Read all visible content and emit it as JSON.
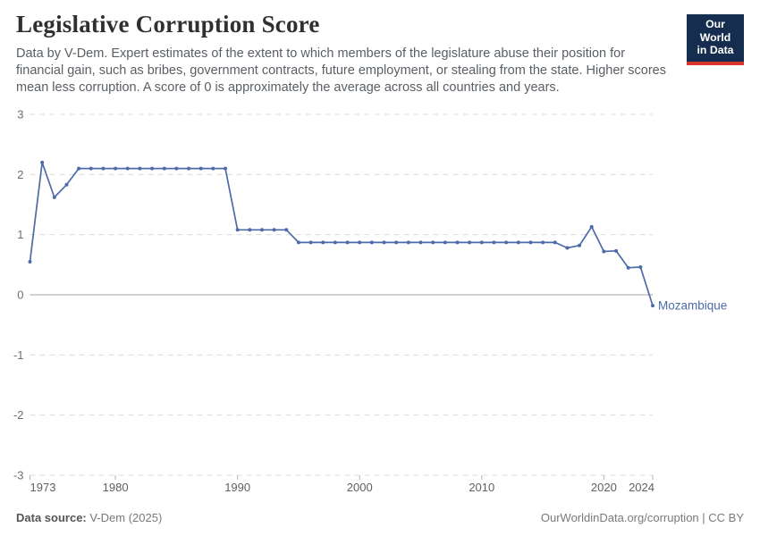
{
  "header": {
    "title": "Legislative Corruption Score",
    "subtitle": "Data by V-Dem. Expert estimates of the extent to which members of the legislature abuse their position for financial gain, such as bribes, government contracts, future employment, or stealing from the state. Higher scores mean less corruption. A score of 0 is approximately the average across all countries and years.",
    "logo": {
      "line1": "Our World",
      "line2": "in Data",
      "bg_color": "#152d4e",
      "bar_color": "#d8352c"
    }
  },
  "chart_data": {
    "type": "line",
    "title": "Legislative Corruption Score",
    "xlabel": "",
    "ylabel": "",
    "xlim": [
      1973,
      2024
    ],
    "ylim": [
      -3,
      3
    ],
    "x_ticks": [
      1973,
      1980,
      1990,
      2000,
      2010,
      2020,
      2024
    ],
    "y_ticks": [
      -3,
      -2,
      -1,
      0,
      1,
      2,
      3
    ],
    "grid": "horizontal dashed gridlines, solid line at zero",
    "legend_position": "end-of-line label",
    "line_color": "#4c6ba8",
    "grid_color": "#dcdcdc",
    "zero_line_color": "#a3a3a3",
    "series": [
      {
        "name": "Mozambique",
        "color": "#4c6ba8",
        "points": [
          [
            1973,
            0.55
          ],
          [
            1974,
            2.2
          ],
          [
            1975,
            1.62
          ],
          [
            1976,
            1.83
          ],
          [
            1977,
            2.1
          ],
          [
            1978,
            2.1
          ],
          [
            1979,
            2.1
          ],
          [
            1980,
            2.1
          ],
          [
            1981,
            2.1
          ],
          [
            1982,
            2.1
          ],
          [
            1983,
            2.1
          ],
          [
            1984,
            2.1
          ],
          [
            1985,
            2.1
          ],
          [
            1986,
            2.1
          ],
          [
            1987,
            2.1
          ],
          [
            1988,
            2.1
          ],
          [
            1989,
            2.1
          ],
          [
            1990,
            1.08
          ],
          [
            1991,
            1.08
          ],
          [
            1992,
            1.08
          ],
          [
            1993,
            1.08
          ],
          [
            1994,
            1.08
          ],
          [
            1995,
            0.87
          ],
          [
            1996,
            0.87
          ],
          [
            1997,
            0.87
          ],
          [
            1998,
            0.87
          ],
          [
            1999,
            0.87
          ],
          [
            2000,
            0.87
          ],
          [
            2001,
            0.87
          ],
          [
            2002,
            0.87
          ],
          [
            2003,
            0.87
          ],
          [
            2004,
            0.87
          ],
          [
            2005,
            0.87
          ],
          [
            2006,
            0.87
          ],
          [
            2007,
            0.87
          ],
          [
            2008,
            0.87
          ],
          [
            2009,
            0.87
          ],
          [
            2010,
            0.87
          ],
          [
            2011,
            0.87
          ],
          [
            2012,
            0.87
          ],
          [
            2013,
            0.87
          ],
          [
            2014,
            0.87
          ],
          [
            2015,
            0.87
          ],
          [
            2016,
            0.87
          ],
          [
            2017,
            0.78
          ],
          [
            2018,
            0.82
          ],
          [
            2019,
            1.13
          ],
          [
            2020,
            0.72
          ],
          [
            2021,
            0.73
          ],
          [
            2022,
            0.45
          ],
          [
            2023,
            0.46
          ],
          [
            2024,
            -0.18
          ]
        ]
      }
    ]
  },
  "footer": {
    "data_source_label": "Data source:",
    "data_source_value": "V-Dem (2025)",
    "attribution": "OurWorldinData.org/corruption | CC BY"
  }
}
